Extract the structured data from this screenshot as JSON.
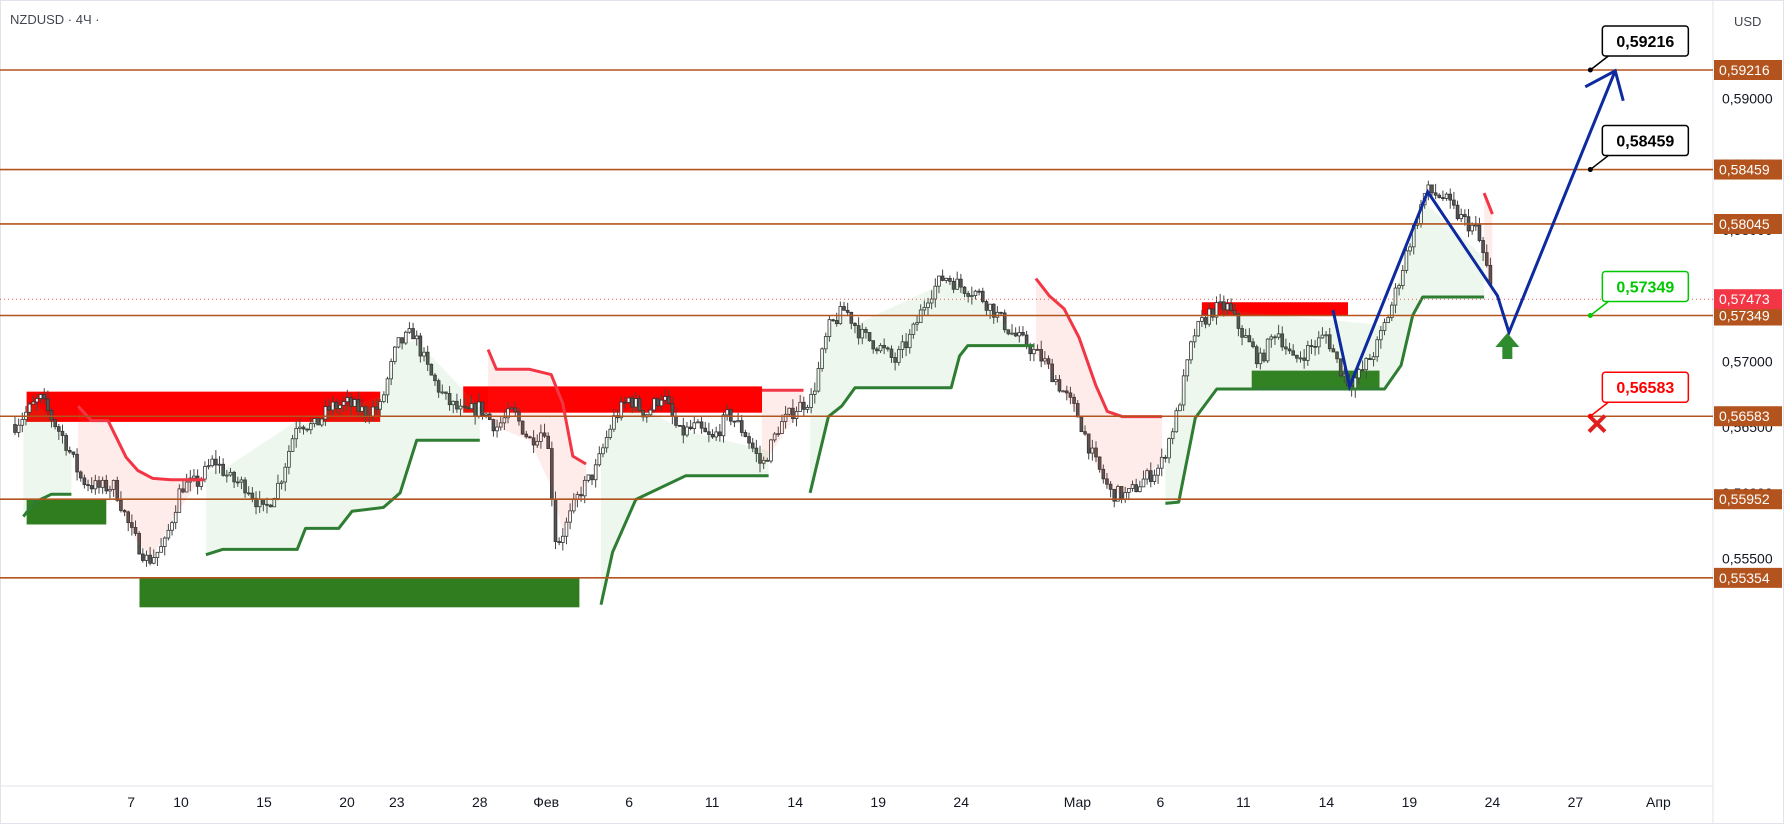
{
  "header": {
    "symbol": "NZDUSD · 4Ч ·",
    "currency": "USD"
  },
  "chart_data": {
    "type": "candlestick",
    "title": "",
    "ylim": [
      0.5512,
      0.5936
    ],
    "price_axis_ticks": [
      "0,59000",
      "0,58500",
      "0,58000",
      "0,57500",
      "0,57000",
      "0,56500",
      "0,56000",
      "0,55500"
    ],
    "time_axis_ticks": [
      {
        "label": "7",
        "day": 7
      },
      {
        "label": "10",
        "day": 10
      },
      {
        "label": "15",
        "day": 15
      },
      {
        "label": "20",
        "day": 20
      },
      {
        "label": "23",
        "day": 23
      },
      {
        "label": "28",
        "day": 28
      },
      {
        "label": "Фев",
        "day": 32
      },
      {
        "label": "6",
        "day": 37
      },
      {
        "label": "11",
        "day": 42
      },
      {
        "label": "14",
        "day": 47
      },
      {
        "label": "19",
        "day": 52
      },
      {
        "label": "24",
        "day": 57
      },
      {
        "label": "Мар",
        "day": 64
      },
      {
        "label": "6",
        "day": 69
      },
      {
        "label": "11",
        "day": 74
      },
      {
        "label": "14",
        "day": 79
      },
      {
        "label": "19",
        "day": 84
      },
      {
        "label": "24",
        "day": 89
      },
      {
        "label": "27",
        "day": 94
      },
      {
        "label": "Апр",
        "day": 99
      }
    ],
    "levels": [
      {
        "value": 0.59216,
        "label": "0,59216"
      },
      {
        "value": 0.58459,
        "label": "0,58459"
      },
      {
        "value": 0.58045,
        "label": "0,58045"
      },
      {
        "value": 0.57349,
        "label": "0,57349"
      },
      {
        "value": 0.56583,
        "label": "0,56583"
      },
      {
        "value": 0.55952,
        "label": "0,55952"
      },
      {
        "value": 0.55354,
        "label": "0,55354"
      }
    ],
    "current_price": {
      "value": 0.57473,
      "label": "0,57473"
    },
    "callouts": [
      {
        "label": "0,59216",
        "value": 0.59216,
        "day": 94.9,
        "color": "#000000"
      },
      {
        "label": "0,58459",
        "value": 0.58459,
        "day": 94.9,
        "color": "#000000"
      },
      {
        "label": "0,57349",
        "value": 0.57349,
        "day": 94.9,
        "color": "#00c800"
      },
      {
        "label": "0,56583",
        "value": 0.56583,
        "day": 94.9,
        "color": "#ff0000"
      }
    ],
    "supply_zones": [
      {
        "from": 0.7,
        "to": 22,
        "top": 0.5677,
        "bottom": 0.5654
      },
      {
        "from": 27,
        "to": 45,
        "top": 0.5681,
        "bottom": 0.5661
      },
      {
        "from": 71.5,
        "to": 80.3,
        "top": 0.5745,
        "bottom": 0.5735
      }
    ],
    "demand_zones": [
      {
        "from": 0.7,
        "to": 5.5,
        "top": 0.5595,
        "bottom": 0.5576
      },
      {
        "from": 7.5,
        "to": 34,
        "top": 0.5536,
        "bottom": 0.5513
      },
      {
        "from": 74.5,
        "to": 82.2,
        "top": 0.5693,
        "bottom": 0.5679
      }
    ],
    "supertrend_down": [
      [
        [
          3.8,
          0.5666
        ],
        [
          4.6,
          0.5655
        ],
        [
          5.6,
          0.5655
        ],
        [
          6.7,
          0.5627
        ],
        [
          7.4,
          0.5617
        ],
        [
          8.3,
          0.5611
        ],
        [
          9.4,
          0.561
        ],
        [
          11.4,
          0.561
        ]
      ],
      [
        [
          28.5,
          0.5709
        ],
        [
          29,
          0.5694
        ],
        [
          31,
          0.5694
        ],
        [
          32.3,
          0.569
        ],
        [
          33,
          0.5668
        ],
        [
          33.6,
          0.5628
        ],
        [
          34.4,
          0.5622
        ]
      ],
      [
        [
          45,
          0.5678
        ],
        [
          47.5,
          0.5678
        ]
      ],
      [
        [
          61.5,
          0.5763
        ],
        [
          62.3,
          0.575
        ],
        [
          63.2,
          0.574
        ],
        [
          64.1,
          0.5718
        ],
        [
          65.1,
          0.5682
        ],
        [
          65.8,
          0.5662
        ],
        [
          66.7,
          0.5658
        ],
        [
          69.1,
          0.5658
        ]
      ],
      [
        [
          88.5,
          0.5828
        ],
        [
          89,
          0.5812
        ]
      ]
    ],
    "supertrend_up": [
      [
        [
          0.5,
          0.5582
        ],
        [
          1.2,
          0.5593
        ],
        [
          2.2,
          0.5599
        ],
        [
          3.4,
          0.5599
        ]
      ],
      [
        [
          11.5,
          0.5553
        ],
        [
          12.5,
          0.5557
        ],
        [
          17,
          0.5557
        ],
        [
          17.5,
          0.5573
        ],
        [
          19.5,
          0.5573
        ],
        [
          20.3,
          0.5586
        ],
        [
          22.2,
          0.5589
        ],
        [
          23.2,
          0.56
        ],
        [
          24.2,
          0.564
        ],
        [
          28,
          0.564
        ]
      ],
      [
        [
          35.3,
          0.5515
        ],
        [
          36,
          0.5555
        ],
        [
          37.4,
          0.5595
        ],
        [
          40.4,
          0.5613
        ],
        [
          45.4,
          0.5613
        ]
      ],
      [
        [
          47.9,
          0.56
        ],
        [
          49,
          0.5658
        ],
        [
          49.8,
          0.5666
        ],
        [
          50.6,
          0.568
        ],
        [
          56.4,
          0.568
        ],
        [
          56.9,
          0.5704
        ],
        [
          57.4,
          0.5712
        ],
        [
          61.4,
          0.5712
        ]
      ],
      [
        [
          69.3,
          0.5592
        ],
        [
          70.1,
          0.5593
        ],
        [
          71.1,
          0.5657
        ],
        [
          72.4,
          0.5679
        ],
        [
          82.5,
          0.5679
        ],
        [
          83.5,
          0.5697
        ],
        [
          84.2,
          0.5735
        ],
        [
          84.8,
          0.5749
        ],
        [
          88.5,
          0.5749
        ]
      ]
    ],
    "forecast_path": [
      {
        "day": 79.4,
        "value": 0.5739
      },
      {
        "day": 80.4,
        "value": 0.5681
      },
      {
        "day": 85.1,
        "value": 0.5829
      },
      {
        "day": 89.3,
        "value": 0.575
      },
      {
        "day": 90.0,
        "value": 0.5722
      },
      {
        "day": 96.4,
        "value": 0.5921
      }
    ],
    "signals": [
      {
        "type": "buy-arrow",
        "day": 89.9,
        "value": 0.5711,
        "color": "#2e8b2e"
      },
      {
        "type": "stop-cross",
        "day": 95.3,
        "value": 0.5658,
        "color": "#e02020"
      }
    ],
    "candle_trend": [
      [
        0,
        0.5652
      ],
      [
        1.5,
        0.5672
      ],
      [
        3,
        0.564
      ],
      [
        4,
        0.561
      ],
      [
        5,
        0.5604
      ],
      [
        6,
        0.5605
      ],
      [
        7,
        0.557
      ],
      [
        8,
        0.5548
      ],
      [
        9,
        0.556
      ],
      [
        10,
        0.5605
      ],
      [
        11,
        0.5608
      ],
      [
        12,
        0.5625
      ],
      [
        13,
        0.561
      ],
      [
        14,
        0.5605
      ],
      [
        15,
        0.5585
      ],
      [
        16,
        0.561
      ],
      [
        17,
        0.5655
      ],
      [
        18,
        0.565
      ],
      [
        19,
        0.5665
      ],
      [
        20,
        0.5668
      ],
      [
        21,
        0.5662
      ],
      [
        22,
        0.5665
      ],
      [
        23,
        0.5712
      ],
      [
        24,
        0.5722
      ],
      [
        25,
        0.569
      ],
      [
        26,
        0.567
      ],
      [
        27,
        0.566
      ],
      [
        28,
        0.5665
      ],
      [
        29,
        0.565
      ],
      [
        30,
        0.5662
      ],
      [
        31,
        0.564
      ],
      [
        32,
        0.565
      ],
      [
        32.6,
        0.556
      ],
      [
        33.2,
        0.5575
      ],
      [
        34,
        0.56
      ],
      [
        35,
        0.5618
      ],
      [
        36,
        0.5655
      ],
      [
        37,
        0.5672
      ],
      [
        38,
        0.566
      ],
      [
        39,
        0.5675
      ],
      [
        40,
        0.5645
      ],
      [
        41,
        0.565
      ],
      [
        42,
        0.564
      ],
      [
        43,
        0.566
      ],
      [
        44,
        0.5645
      ],
      [
        45,
        0.562
      ],
      [
        46,
        0.565
      ],
      [
        47,
        0.5664
      ],
      [
        48,
        0.5672
      ],
      [
        49,
        0.5725
      ],
      [
        50,
        0.574
      ],
      [
        51,
        0.572
      ],
      [
        52,
        0.5712
      ],
      [
        53,
        0.57
      ],
      [
        54,
        0.572
      ],
      [
        55,
        0.575
      ],
      [
        56,
        0.5765
      ],
      [
        57,
        0.5757
      ],
      [
        58,
        0.5752
      ],
      [
        59,
        0.5738
      ],
      [
        60,
        0.5722
      ],
      [
        61,
        0.5712
      ],
      [
        62,
        0.57
      ],
      [
        63,
        0.568
      ],
      [
        64,
        0.566
      ],
      [
        65,
        0.5625
      ],
      [
        66,
        0.56
      ],
      [
        67,
        0.5598
      ],
      [
        68,
        0.561
      ],
      [
        69,
        0.562
      ],
      [
        70,
        0.566
      ],
      [
        71,
        0.572
      ],
      [
        72,
        0.5738
      ],
      [
        73,
        0.5742
      ],
      [
        74,
        0.572
      ],
      [
        75,
        0.57
      ],
      [
        76,
        0.5725
      ],
      [
        77,
        0.57
      ],
      [
        78,
        0.571
      ],
      [
        79,
        0.572
      ],
      [
        79.8,
        0.5695
      ],
      [
        80.4,
        0.5683
      ],
      [
        81,
        0.569
      ],
      [
        82,
        0.571
      ],
      [
        83,
        0.5745
      ],
      [
        84,
        0.579
      ],
      [
        85,
        0.583
      ],
      [
        86,
        0.5825
      ],
      [
        87,
        0.581
      ],
      [
        88,
        0.58
      ],
      [
        88.6,
        0.5775
      ],
      [
        89,
        0.5747
      ]
    ]
  }
}
